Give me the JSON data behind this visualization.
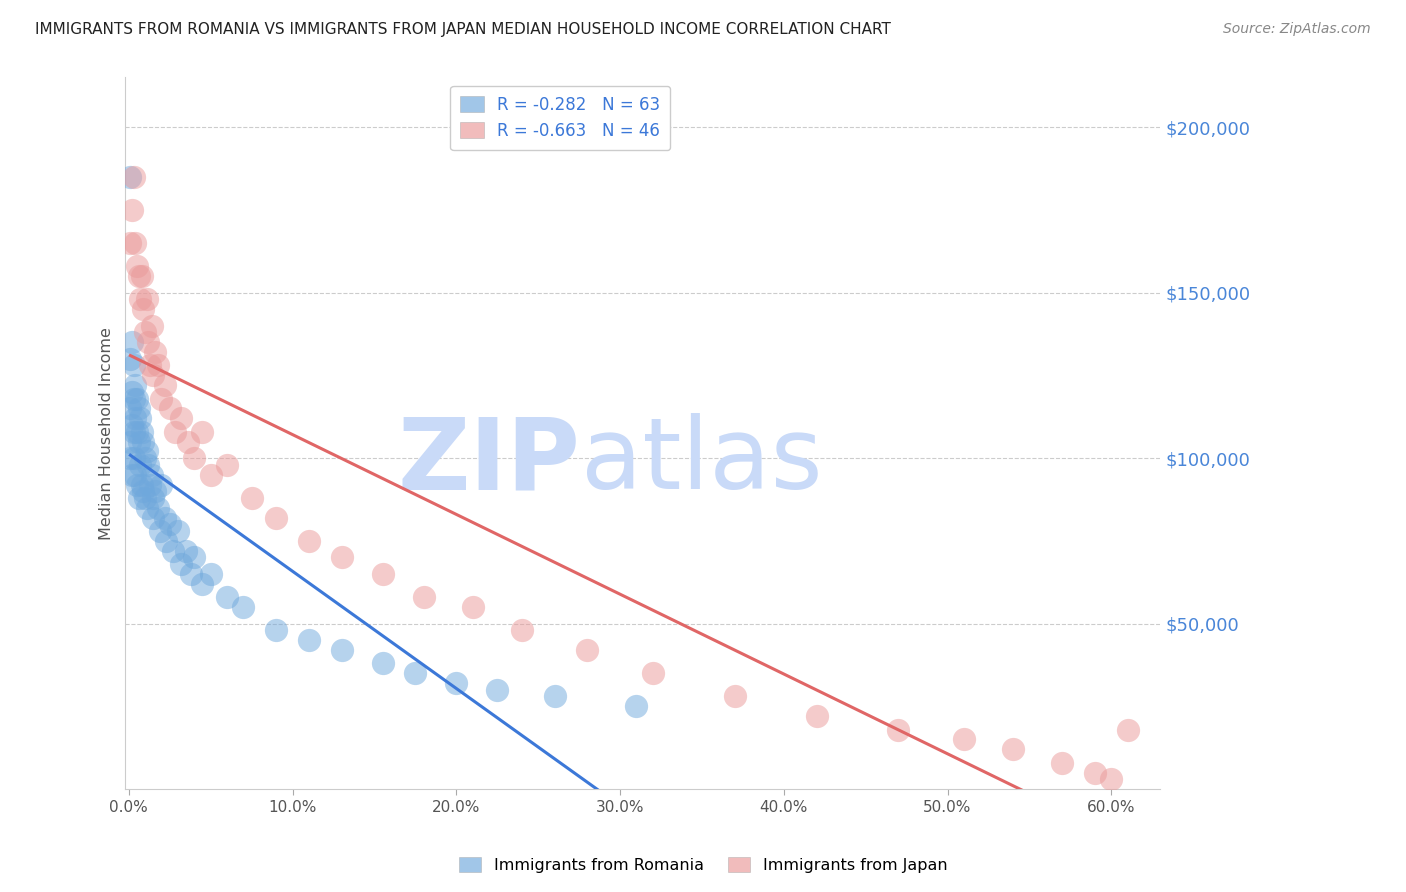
{
  "title": "IMMIGRANTS FROM ROMANIA VS IMMIGRANTS FROM JAPAN MEDIAN HOUSEHOLD INCOME CORRELATION CHART",
  "source": "Source: ZipAtlas.com",
  "ylabel": "Median Household Income",
  "ymin": 0,
  "ymax": 215000,
  "xmin": -0.002,
  "xmax": 0.63,
  "romania_R": -0.282,
  "romania_N": 63,
  "japan_R": -0.663,
  "japan_N": 46,
  "romania_color": "#6fa8dc",
  "japan_color": "#ea9999",
  "romania_line_color": "#3c78d8",
  "japan_line_color": "#e06666",
  "watermark_color": "#c9daf8",
  "romania_x": [
    0.001,
    0.001,
    0.001,
    0.001,
    0.001,
    0.002,
    0.002,
    0.002,
    0.002,
    0.003,
    0.003,
    0.003,
    0.003,
    0.004,
    0.004,
    0.004,
    0.005,
    0.005,
    0.005,
    0.006,
    0.006,
    0.006,
    0.007,
    0.007,
    0.008,
    0.008,
    0.009,
    0.009,
    0.01,
    0.01,
    0.011,
    0.011,
    0.012,
    0.013,
    0.014,
    0.015,
    0.015,
    0.016,
    0.018,
    0.019,
    0.02,
    0.022,
    0.023,
    0.025,
    0.027,
    0.03,
    0.032,
    0.035,
    0.038,
    0.04,
    0.045,
    0.05,
    0.06,
    0.07,
    0.09,
    0.11,
    0.13,
    0.155,
    0.175,
    0.2,
    0.225,
    0.26,
    0.31
  ],
  "romania_y": [
    185000,
    130000,
    115000,
    105000,
    100000,
    135000,
    120000,
    110000,
    95000,
    128000,
    118000,
    108000,
    100000,
    122000,
    112000,
    95000,
    118000,
    108000,
    92000,
    115000,
    105000,
    88000,
    112000,
    98000,
    108000,
    92000,
    105000,
    90000,
    100000,
    88000,
    102000,
    85000,
    98000,
    92000,
    95000,
    88000,
    82000,
    90000,
    85000,
    78000,
    92000,
    82000,
    75000,
    80000,
    72000,
    78000,
    68000,
    72000,
    65000,
    70000,
    62000,
    65000,
    58000,
    55000,
    48000,
    45000,
    42000,
    38000,
    35000,
    32000,
    30000,
    28000,
    25000
  ],
  "japan_x": [
    0.001,
    0.002,
    0.003,
    0.004,
    0.005,
    0.006,
    0.007,
    0.008,
    0.009,
    0.01,
    0.011,
    0.012,
    0.013,
    0.014,
    0.015,
    0.016,
    0.018,
    0.02,
    0.022,
    0.025,
    0.028,
    0.032,
    0.036,
    0.04,
    0.045,
    0.05,
    0.06,
    0.075,
    0.09,
    0.11,
    0.13,
    0.155,
    0.18,
    0.21,
    0.24,
    0.28,
    0.32,
    0.37,
    0.42,
    0.47,
    0.51,
    0.54,
    0.57,
    0.59,
    0.6,
    0.61
  ],
  "japan_y": [
    165000,
    175000,
    185000,
    165000,
    158000,
    155000,
    148000,
    155000,
    145000,
    138000,
    148000,
    135000,
    128000,
    140000,
    125000,
    132000,
    128000,
    118000,
    122000,
    115000,
    108000,
    112000,
    105000,
    100000,
    108000,
    95000,
    98000,
    88000,
    82000,
    75000,
    70000,
    65000,
    58000,
    55000,
    48000,
    42000,
    35000,
    28000,
    22000,
    18000,
    15000,
    12000,
    8000,
    5000,
    3000,
    18000
  ]
}
